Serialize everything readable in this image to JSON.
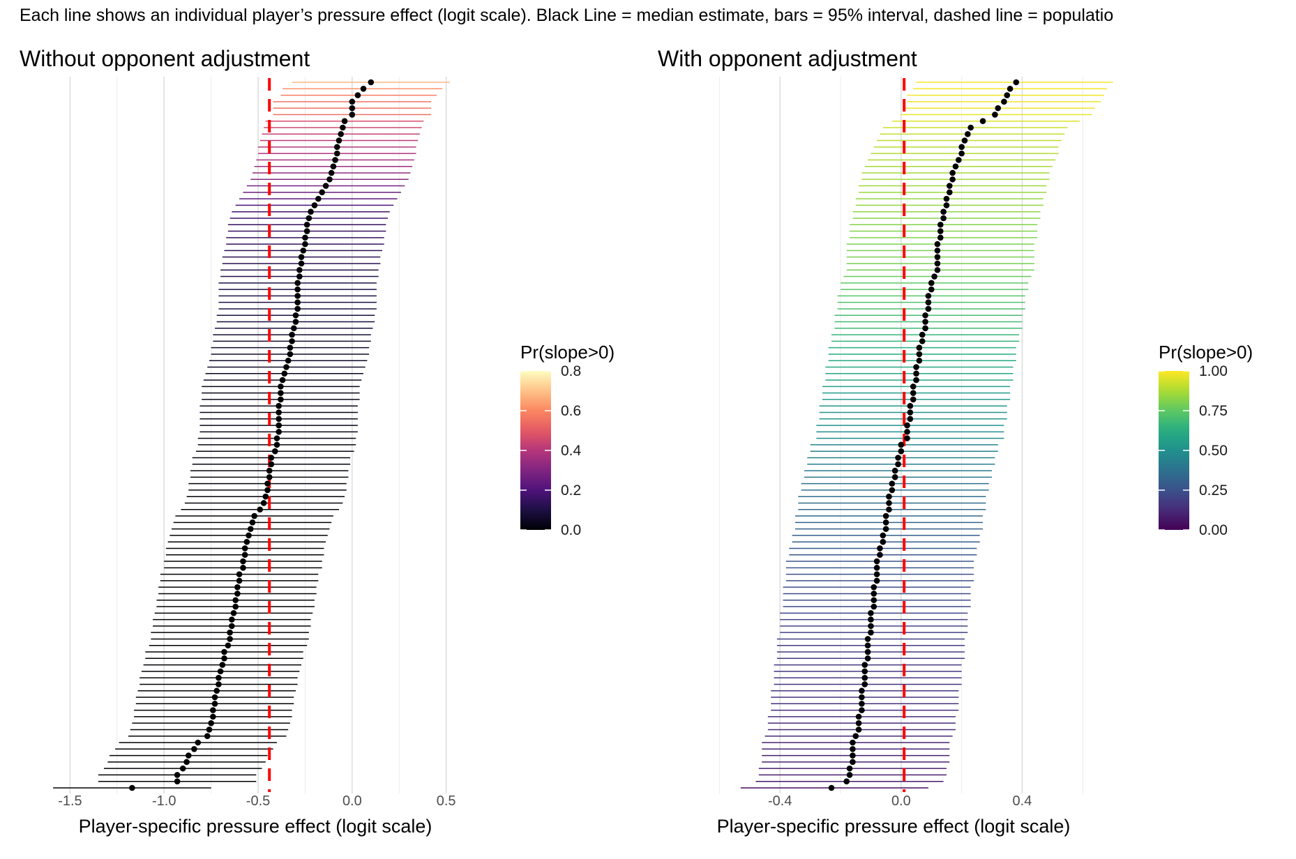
{
  "caption": "Each line shows an individual player’s pressure effect (logit scale). Black Line = median estimate, bars = 95% interval, dashed line = populatio",
  "chart_data": [
    {
      "type": "forest",
      "title": "Without opponent adjustment",
      "xlabel": "Player-specific pressure effect (logit scale)",
      "ylabel": "",
      "xlim": [
        -1.65,
        0.62
      ],
      "xticks": [
        -1.5,
        -1.0,
        -0.5,
        0.0,
        0.5
      ],
      "xtick_labels": [
        "-1.5",
        "-1.0",
        "-0.5",
        "0.0",
        "0.5"
      ],
      "reference_line": -0.44,
      "grid": "vertical",
      "legend": {
        "title": "Pr(slope>0)",
        "ticks": [
          "0.0",
          "0.2",
          "0.4",
          "0.6",
          "0.8"
        ],
        "range": [
          0,
          0.8
        ],
        "palette": "magma",
        "placement": "right"
      },
      "players": {
        "median": [
          0.1,
          0.06,
          0.03,
          0.0,
          0.0,
          0.0,
          -0.04,
          -0.05,
          -0.06,
          -0.07,
          -0.08,
          -0.08,
          -0.09,
          -0.1,
          -0.11,
          -0.12,
          -0.14,
          -0.16,
          -0.18,
          -0.2,
          -0.22,
          -0.23,
          -0.24,
          -0.24,
          -0.25,
          -0.25,
          -0.26,
          -0.27,
          -0.27,
          -0.28,
          -0.28,
          -0.29,
          -0.29,
          -0.29,
          -0.29,
          -0.29,
          -0.3,
          -0.3,
          -0.31,
          -0.32,
          -0.32,
          -0.33,
          -0.33,
          -0.34,
          -0.35,
          -0.36,
          -0.37,
          -0.38,
          -0.38,
          -0.38,
          -0.39,
          -0.39,
          -0.39,
          -0.39,
          -0.39,
          -0.4,
          -0.4,
          -0.41,
          -0.43,
          -0.43,
          -0.44,
          -0.44,
          -0.45,
          -0.45,
          -0.46,
          -0.47,
          -0.49,
          -0.52,
          -0.53,
          -0.54,
          -0.55,
          -0.56,
          -0.57,
          -0.57,
          -0.58,
          -0.58,
          -0.6,
          -0.6,
          -0.61,
          -0.61,
          -0.62,
          -0.62,
          -0.63,
          -0.64,
          -0.64,
          -0.65,
          -0.65,
          -0.66,
          -0.68,
          -0.68,
          -0.69,
          -0.7,
          -0.71,
          -0.71,
          -0.72,
          -0.73,
          -0.73,
          -0.74,
          -0.74,
          -0.75,
          -0.76,
          -0.77,
          -0.82,
          -0.84,
          -0.87,
          -0.88,
          -0.9,
          -0.93,
          -0.93,
          -1.17
        ],
        "lower": [
          -0.32,
          -0.37,
          -0.38,
          -0.42,
          -0.42,
          -0.42,
          -0.46,
          -0.47,
          -0.48,
          -0.49,
          -0.5,
          -0.5,
          -0.51,
          -0.52,
          -0.53,
          -0.54,
          -0.56,
          -0.58,
          -0.6,
          -0.62,
          -0.64,
          -0.65,
          -0.66,
          -0.66,
          -0.67,
          -0.67,
          -0.68,
          -0.69,
          -0.69,
          -0.7,
          -0.7,
          -0.71,
          -0.71,
          -0.71,
          -0.71,
          -0.71,
          -0.72,
          -0.72,
          -0.73,
          -0.74,
          -0.74,
          -0.75,
          -0.75,
          -0.76,
          -0.77,
          -0.78,
          -0.79,
          -0.8,
          -0.8,
          -0.8,
          -0.81,
          -0.81,
          -0.81,
          -0.81,
          -0.81,
          -0.82,
          -0.82,
          -0.83,
          -0.85,
          -0.85,
          -0.86,
          -0.86,
          -0.87,
          -0.87,
          -0.88,
          -0.89,
          -0.91,
          -0.94,
          -0.95,
          -0.96,
          -0.97,
          -0.98,
          -0.99,
          -0.99,
          -1.0,
          -1.0,
          -1.02,
          -1.02,
          -1.03,
          -1.03,
          -1.04,
          -1.04,
          -1.05,
          -1.06,
          -1.06,
          -1.07,
          -1.07,
          -1.08,
          -1.1,
          -1.1,
          -1.11,
          -1.12,
          -1.13,
          -1.13,
          -1.14,
          -1.15,
          -1.15,
          -1.16,
          -1.16,
          -1.17,
          -1.18,
          -1.19,
          -1.24,
          -1.26,
          -1.29,
          -1.3,
          -1.32,
          -1.35,
          -1.35,
          -1.59
        ],
        "upper": [
          0.52,
          0.48,
          0.45,
          0.42,
          0.42,
          0.42,
          0.38,
          0.37,
          0.36,
          0.35,
          0.34,
          0.34,
          0.33,
          0.32,
          0.31,
          0.3,
          0.28,
          0.26,
          0.24,
          0.22,
          0.2,
          0.19,
          0.18,
          0.18,
          0.17,
          0.17,
          0.16,
          0.15,
          0.15,
          0.14,
          0.14,
          0.13,
          0.13,
          0.13,
          0.13,
          0.13,
          0.12,
          0.12,
          0.11,
          0.1,
          0.1,
          0.09,
          0.09,
          0.08,
          0.07,
          0.06,
          0.05,
          0.04,
          0.04,
          0.04,
          0.03,
          0.03,
          0.03,
          0.03,
          0.03,
          0.02,
          0.02,
          0.01,
          -0.01,
          -0.01,
          -0.02,
          -0.02,
          -0.03,
          -0.03,
          -0.04,
          -0.05,
          -0.07,
          -0.1,
          -0.11,
          -0.12,
          -0.13,
          -0.14,
          -0.15,
          -0.15,
          -0.16,
          -0.16,
          -0.18,
          -0.18,
          -0.19,
          -0.19,
          -0.2,
          -0.2,
          -0.21,
          -0.22,
          -0.22,
          -0.23,
          -0.23,
          -0.24,
          -0.26,
          -0.26,
          -0.27,
          -0.28,
          -0.29,
          -0.29,
          -0.3,
          -0.31,
          -0.31,
          -0.32,
          -0.32,
          -0.33,
          -0.34,
          -0.35,
          -0.4,
          -0.42,
          -0.45,
          -0.46,
          -0.48,
          -0.51,
          -0.51,
          -0.75
        ],
        "pr_slope_pos": [
          0.68,
          0.62,
          0.58,
          0.55,
          0.55,
          0.55,
          0.47,
          0.45,
          0.43,
          0.41,
          0.39,
          0.39,
          0.37,
          0.35,
          0.33,
          0.31,
          0.28,
          0.25,
          0.22,
          0.19,
          0.17,
          0.16,
          0.15,
          0.15,
          0.14,
          0.14,
          0.13,
          0.12,
          0.12,
          0.11,
          0.11,
          0.1,
          0.1,
          0.1,
          0.1,
          0.1,
          0.09,
          0.09,
          0.08,
          0.07,
          0.07,
          0.06,
          0.06,
          0.06,
          0.05,
          0.04,
          0.04,
          0.03,
          0.03,
          0.03,
          0.03,
          0.03,
          0.03,
          0.03,
          0.03,
          0.02,
          0.02,
          0.02,
          0.01,
          0.01,
          0.01,
          0.01,
          0.01,
          0.01,
          0.01,
          0.01,
          0.01,
          0.0,
          0.0,
          0.0,
          0.0,
          0.0,
          0.0,
          0.0,
          0.0,
          0.0,
          0.0,
          0.0,
          0.0,
          0.0,
          0.0,
          0.0,
          0.0,
          0.0,
          0.0,
          0.0,
          0.0,
          0.0,
          0.0,
          0.0,
          0.0,
          0.0,
          0.0,
          0.0,
          0.0,
          0.0,
          0.0,
          0.0,
          0.0,
          0.0,
          0.0,
          0.0,
          0.0,
          0.0,
          0.0,
          0.0,
          0.0,
          0.0,
          0.0,
          0.0
        ]
      }
    },
    {
      "type": "forest",
      "title": "With opponent adjustment",
      "xlabel": "Player-specific pressure effect (logit scale)",
      "ylabel": "",
      "xlim": [
        -0.73,
        0.68
      ],
      "xticks": [
        -0.4,
        0.0,
        0.4
      ],
      "xtick_labels": [
        "-0.4",
        "0.0",
        "0.4"
      ],
      "reference_line": 0.01,
      "grid": "vertical",
      "legend": {
        "title": "Pr(slope>0)",
        "ticks": [
          "0.00",
          "0.25",
          "0.50",
          "0.75",
          "1.00"
        ],
        "range": [
          0,
          1
        ],
        "palette": "viridis",
        "placement": "right"
      },
      "players": {
        "median": [
          0.38,
          0.36,
          0.35,
          0.34,
          0.32,
          0.31,
          0.27,
          0.23,
          0.22,
          0.21,
          0.2,
          0.2,
          0.19,
          0.18,
          0.17,
          0.17,
          0.16,
          0.16,
          0.15,
          0.15,
          0.14,
          0.14,
          0.13,
          0.13,
          0.13,
          0.12,
          0.12,
          0.12,
          0.12,
          0.12,
          0.11,
          0.1,
          0.1,
          0.09,
          0.09,
          0.09,
          0.08,
          0.08,
          0.08,
          0.07,
          0.07,
          0.06,
          0.06,
          0.06,
          0.05,
          0.05,
          0.05,
          0.04,
          0.04,
          0.04,
          0.03,
          0.03,
          0.03,
          0.02,
          0.02,
          0.02,
          0.0,
          0.0,
          -0.01,
          -0.01,
          -0.02,
          -0.02,
          -0.03,
          -0.03,
          -0.04,
          -0.04,
          -0.04,
          -0.05,
          -0.05,
          -0.05,
          -0.06,
          -0.06,
          -0.07,
          -0.07,
          -0.08,
          -0.08,
          -0.08,
          -0.08,
          -0.09,
          -0.09,
          -0.09,
          -0.09,
          -0.1,
          -0.1,
          -0.1,
          -0.1,
          -0.11,
          -0.11,
          -0.11,
          -0.11,
          -0.12,
          -0.12,
          -0.12,
          -0.12,
          -0.13,
          -0.13,
          -0.13,
          -0.13,
          -0.14,
          -0.14,
          -0.14,
          -0.15,
          -0.16,
          -0.16,
          -0.16,
          -0.16,
          -0.17,
          -0.17,
          -0.18,
          -0.23
        ],
        "lower": [
          0.05,
          0.04,
          0.02,
          0.02,
          0.01,
          0.0,
          -0.03,
          -0.06,
          -0.07,
          -0.08,
          -0.09,
          -0.1,
          -0.11,
          -0.12,
          -0.13,
          -0.13,
          -0.14,
          -0.14,
          -0.15,
          -0.15,
          -0.16,
          -0.16,
          -0.17,
          -0.17,
          -0.17,
          -0.18,
          -0.18,
          -0.18,
          -0.18,
          -0.18,
          -0.19,
          -0.2,
          -0.2,
          -0.21,
          -0.21,
          -0.21,
          -0.22,
          -0.22,
          -0.22,
          -0.23,
          -0.23,
          -0.24,
          -0.24,
          -0.24,
          -0.25,
          -0.25,
          -0.25,
          -0.26,
          -0.26,
          -0.26,
          -0.27,
          -0.27,
          -0.27,
          -0.28,
          -0.28,
          -0.28,
          -0.3,
          -0.3,
          -0.31,
          -0.31,
          -0.32,
          -0.32,
          -0.33,
          -0.33,
          -0.34,
          -0.34,
          -0.34,
          -0.35,
          -0.35,
          -0.35,
          -0.36,
          -0.36,
          -0.37,
          -0.37,
          -0.38,
          -0.38,
          -0.38,
          -0.38,
          -0.39,
          -0.39,
          -0.39,
          -0.39,
          -0.4,
          -0.4,
          -0.4,
          -0.4,
          -0.41,
          -0.41,
          -0.41,
          -0.41,
          -0.42,
          -0.42,
          -0.42,
          -0.42,
          -0.43,
          -0.43,
          -0.43,
          -0.43,
          -0.44,
          -0.44,
          -0.44,
          -0.45,
          -0.46,
          -0.46,
          -0.46,
          -0.46,
          -0.47,
          -0.47,
          -0.48,
          -0.53
        ],
        "upper": [
          0.7,
          0.68,
          0.67,
          0.66,
          0.64,
          0.63,
          0.59,
          0.55,
          0.54,
          0.53,
          0.52,
          0.52,
          0.51,
          0.5,
          0.49,
          0.49,
          0.48,
          0.48,
          0.47,
          0.47,
          0.46,
          0.46,
          0.45,
          0.45,
          0.45,
          0.44,
          0.44,
          0.44,
          0.44,
          0.44,
          0.43,
          0.42,
          0.42,
          0.41,
          0.41,
          0.41,
          0.4,
          0.4,
          0.4,
          0.39,
          0.39,
          0.38,
          0.38,
          0.38,
          0.37,
          0.37,
          0.37,
          0.36,
          0.36,
          0.36,
          0.35,
          0.35,
          0.35,
          0.34,
          0.34,
          0.34,
          0.32,
          0.32,
          0.31,
          0.31,
          0.3,
          0.3,
          0.29,
          0.29,
          0.28,
          0.28,
          0.28,
          0.27,
          0.27,
          0.27,
          0.26,
          0.26,
          0.25,
          0.25,
          0.24,
          0.24,
          0.24,
          0.24,
          0.23,
          0.23,
          0.23,
          0.23,
          0.22,
          0.22,
          0.22,
          0.22,
          0.21,
          0.21,
          0.21,
          0.21,
          0.2,
          0.2,
          0.2,
          0.2,
          0.19,
          0.19,
          0.19,
          0.19,
          0.18,
          0.18,
          0.18,
          0.17,
          0.16,
          0.16,
          0.16,
          0.16,
          0.15,
          0.15,
          0.14,
          0.09
        ],
        "pr_slope_pos": [
          0.99,
          0.99,
          0.98,
          0.98,
          0.98,
          0.97,
          0.95,
          0.92,
          0.91,
          0.9,
          0.89,
          0.89,
          0.88,
          0.87,
          0.86,
          0.86,
          0.85,
          0.85,
          0.84,
          0.84,
          0.83,
          0.82,
          0.81,
          0.81,
          0.81,
          0.8,
          0.8,
          0.8,
          0.79,
          0.79,
          0.77,
          0.75,
          0.74,
          0.73,
          0.72,
          0.71,
          0.7,
          0.69,
          0.68,
          0.66,
          0.65,
          0.63,
          0.62,
          0.61,
          0.6,
          0.59,
          0.58,
          0.56,
          0.55,
          0.54,
          0.53,
          0.52,
          0.51,
          0.5,
          0.49,
          0.48,
          0.45,
          0.44,
          0.43,
          0.42,
          0.4,
          0.39,
          0.38,
          0.37,
          0.36,
          0.35,
          0.34,
          0.33,
          0.32,
          0.31,
          0.3,
          0.29,
          0.28,
          0.27,
          0.26,
          0.25,
          0.25,
          0.24,
          0.23,
          0.23,
          0.22,
          0.22,
          0.21,
          0.2,
          0.2,
          0.19,
          0.19,
          0.18,
          0.18,
          0.17,
          0.17,
          0.16,
          0.16,
          0.15,
          0.15,
          0.14,
          0.14,
          0.13,
          0.13,
          0.12,
          0.12,
          0.11,
          0.1,
          0.1,
          0.09,
          0.09,
          0.08,
          0.08,
          0.07,
          0.03
        ]
      }
    }
  ]
}
